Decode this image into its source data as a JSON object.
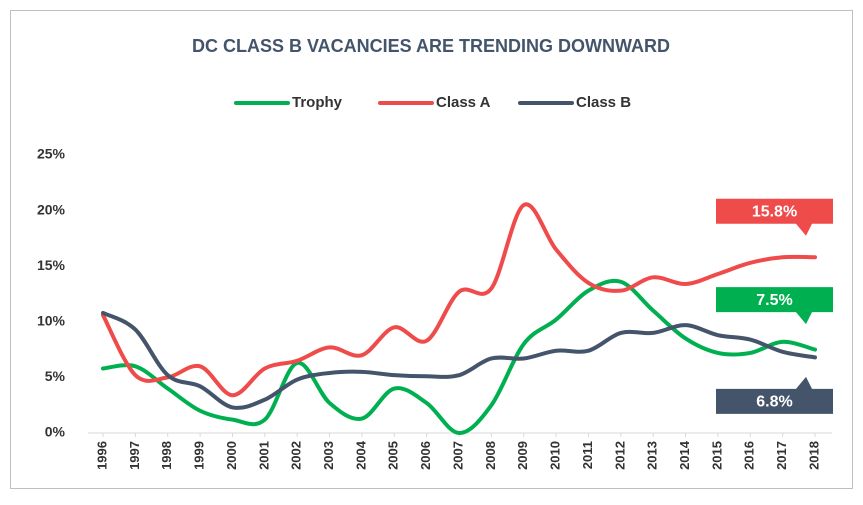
{
  "chart_data": {
    "type": "line",
    "title": "DC CLASS B VACANCIES ARE TRENDING DOWNWARD",
    "categories": [
      "1996",
      "1997",
      "1998",
      "1999",
      "2000",
      "2001",
      "2002",
      "2003",
      "2004",
      "2005",
      "2006",
      "2007",
      "2008",
      "2009",
      "2010",
      "2011",
      "2012",
      "2013",
      "2014",
      "2015",
      "2016",
      "2017",
      "2018"
    ],
    "series": [
      {
        "name": "Trophy",
        "color": "#00b050",
        "values": [
          5.8,
          6.0,
          4.0,
          2.0,
          1.2,
          1.2,
          6.3,
          2.7,
          1.3,
          4.0,
          2.7,
          0.0,
          2.5,
          8.0,
          10.2,
          12.8,
          13.6,
          11.0,
          8.5,
          7.2,
          7.2,
          8.2,
          7.5
        ],
        "value_labels": [
          null,
          null,
          null,
          null,
          null,
          null,
          null,
          null,
          null,
          null,
          null,
          null,
          null,
          null,
          null,
          null,
          null,
          null,
          null,
          null,
          null,
          null,
          "7.5%"
        ]
      },
      {
        "name": "Class A",
        "color": "#f04b4b",
        "values": [
          10.6,
          5.2,
          5.0,
          6.0,
          3.4,
          5.8,
          6.5,
          7.7,
          7.0,
          9.5,
          8.3,
          12.7,
          13.0,
          20.5,
          16.5,
          13.5,
          12.8,
          14.0,
          13.4,
          14.3,
          15.3,
          15.8,
          15.8
        ],
        "value_labels": [
          null,
          null,
          null,
          null,
          null,
          null,
          null,
          null,
          null,
          null,
          null,
          null,
          null,
          null,
          null,
          null,
          null,
          null,
          null,
          null,
          null,
          null,
          "15.8%"
        ]
      },
      {
        "name": "Class B",
        "color": "#44546a",
        "values": [
          10.8,
          9.3,
          5.2,
          4.2,
          2.3,
          3.0,
          4.8,
          5.4,
          5.5,
          5.2,
          5.1,
          5.2,
          6.7,
          6.7,
          7.4,
          7.4,
          9.0,
          9.0,
          9.7,
          8.8,
          8.4,
          7.3,
          6.8
        ],
        "value_labels": [
          null,
          null,
          null,
          null,
          null,
          null,
          null,
          null,
          null,
          null,
          null,
          null,
          null,
          null,
          null,
          null,
          null,
          null,
          null,
          null,
          null,
          null,
          "6.8%"
        ]
      }
    ],
    "ylim": [
      0,
      25
    ],
    "yticks": [
      {
        "value": 0,
        "label": "0%"
      },
      {
        "value": 5,
        "label": "5%"
      },
      {
        "value": 10,
        "label": "10%"
      },
      {
        "value": 15,
        "label": "15%"
      },
      {
        "value": 20,
        "label": "20%"
      },
      {
        "value": 25,
        "label": "25%"
      }
    ],
    "grid": false,
    "legend": "top"
  }
}
